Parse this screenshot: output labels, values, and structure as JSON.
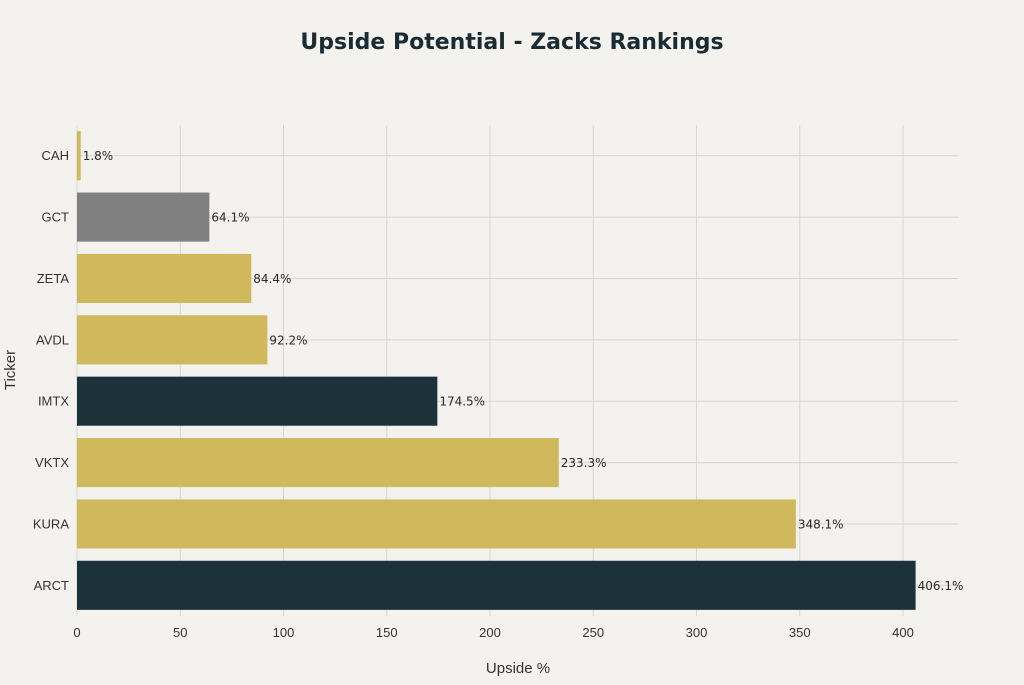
{
  "chart_data": {
    "type": "bar",
    "orientation": "horizontal",
    "title": "Upside Potential - Zacks Rankings",
    "xlabel": "Upside %",
    "ylabel": "Ticker",
    "xlim": [
      0,
      430
    ],
    "xticks": [
      0,
      50,
      100,
      150,
      200,
      250,
      300,
      350,
      400
    ],
    "grid": true,
    "categories": [
      "CAH",
      "GCT",
      "ZETA",
      "AVDL",
      "IMTX",
      "VKTX",
      "KURA",
      "ARCT"
    ],
    "values": [
      1.8,
      64.1,
      84.4,
      92.2,
      174.5,
      233.3,
      348.1,
      406.1
    ],
    "data_labels": [
      "1.8%",
      "64.1%",
      "84.4%",
      "92.2%",
      "174.5%",
      "233.3%",
      "348.1%",
      "406.1%"
    ],
    "bar_colors": [
      "#cfb95c",
      "#808080",
      "#cfb95c",
      "#cfb95c",
      "#1c323a",
      "#cfb95c",
      "#cfb95c",
      "#1c323a"
    ]
  }
}
